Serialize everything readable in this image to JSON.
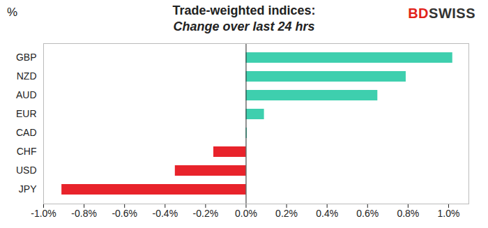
{
  "chart_data": {
    "type": "bar",
    "orientation": "horizontal",
    "title": "Trade-weighted indices:",
    "subtitle": "Change over last 24 hrs",
    "unit_label": "%",
    "logo": "BDSWISS",
    "categories": [
      "GBP",
      "NZD",
      "AUD",
      "EUR",
      "CAD",
      "CHF",
      "USD",
      "JPY"
    ],
    "values": [
      1.02,
      0.79,
      0.65,
      0.09,
      0.005,
      -0.16,
      -0.35,
      -0.91
    ],
    "colors": [
      "#3ecfae",
      "#3ecfae",
      "#3ecfae",
      "#3ecfae",
      "#3ecfae",
      "#e8232b",
      "#e8232b",
      "#e8232b"
    ],
    "xlim": [
      -1.0,
      1.1
    ],
    "xticks": [
      {
        "value": -1.0,
        "label": "-1.0%"
      },
      {
        "value": -0.8,
        "label": "-0.8%"
      },
      {
        "value": -0.6,
        "label": "-0.6%"
      },
      {
        "value": -0.4,
        "label": "-0.4%"
      },
      {
        "value": -0.2,
        "label": "-0.2%"
      },
      {
        "value": 0,
        "label": "0.0%"
      },
      {
        "value": 0.2,
        "label": "0.2%"
      },
      {
        "value": 0.4,
        "label": "0.4%"
      },
      {
        "value": 0.6,
        "label": "0.6%"
      },
      {
        "value": 0.8,
        "label": "0.8%"
      },
      {
        "value": 1.0,
        "label": "1.0%"
      }
    ],
    "grid": false
  }
}
